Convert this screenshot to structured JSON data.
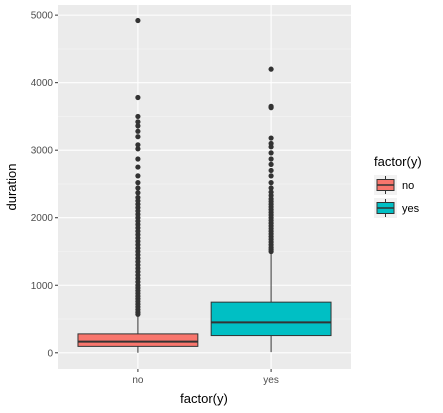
{
  "chart_data": {
    "type": "boxplot",
    "xlabel": "factor(y)",
    "ylabel": "duration",
    "categories": [
      "no",
      "yes"
    ],
    "ylim": [
      -240,
      5150
    ],
    "yticks": [
      0,
      1000,
      2000,
      3000,
      4000,
      5000
    ],
    "ytick_labels": [
      "0",
      "1000",
      "2000",
      "3000",
      "4000",
      "5000"
    ],
    "grid": true,
    "legend": {
      "title": "factor(y)",
      "position": "right",
      "entries": [
        {
          "label": "no",
          "color": "#F8766D"
        },
        {
          "label": "yes",
          "color": "#00BFC4"
        }
      ]
    },
    "boxes": [
      {
        "category": "no",
        "color": "#F8766D",
        "whisker_low": 0,
        "q1": 95,
        "median": 165,
        "q3": 280,
        "whisker_high": 555,
        "outliers": [
          570,
          600,
          640,
          680,
          720,
          760,
          800,
          840,
          880,
          920,
          960,
          1000,
          1050,
          1100,
          1150,
          1200,
          1250,
          1300,
          1350,
          1400,
          1450,
          1500,
          1550,
          1600,
          1650,
          1700,
          1750,
          1800,
          1850,
          1900,
          1950,
          2000,
          2050,
          2100,
          2150,
          2200,
          2250,
          2300,
          2370,
          2440,
          2520,
          2620,
          2750,
          2870,
          3020,
          3080,
          3200,
          3280,
          3360,
          3420,
          3500,
          3780,
          4920
        ]
      },
      {
        "category": "yes",
        "color": "#00BFC4",
        "whisker_low": 10,
        "q1": 255,
        "median": 450,
        "q3": 750,
        "whisker_high": 1480,
        "outliers": [
          1500,
          1530,
          1560,
          1600,
          1640,
          1680,
          1720,
          1760,
          1800,
          1840,
          1880,
          1920,
          1960,
          2000,
          2040,
          2080,
          2120,
          2160,
          2200,
          2240,
          2280,
          2330,
          2380,
          2440,
          2520,
          2620,
          2700,
          2790,
          2870,
          2960,
          3050,
          3100,
          3180,
          3630,
          3650,
          4200
        ]
      }
    ]
  }
}
